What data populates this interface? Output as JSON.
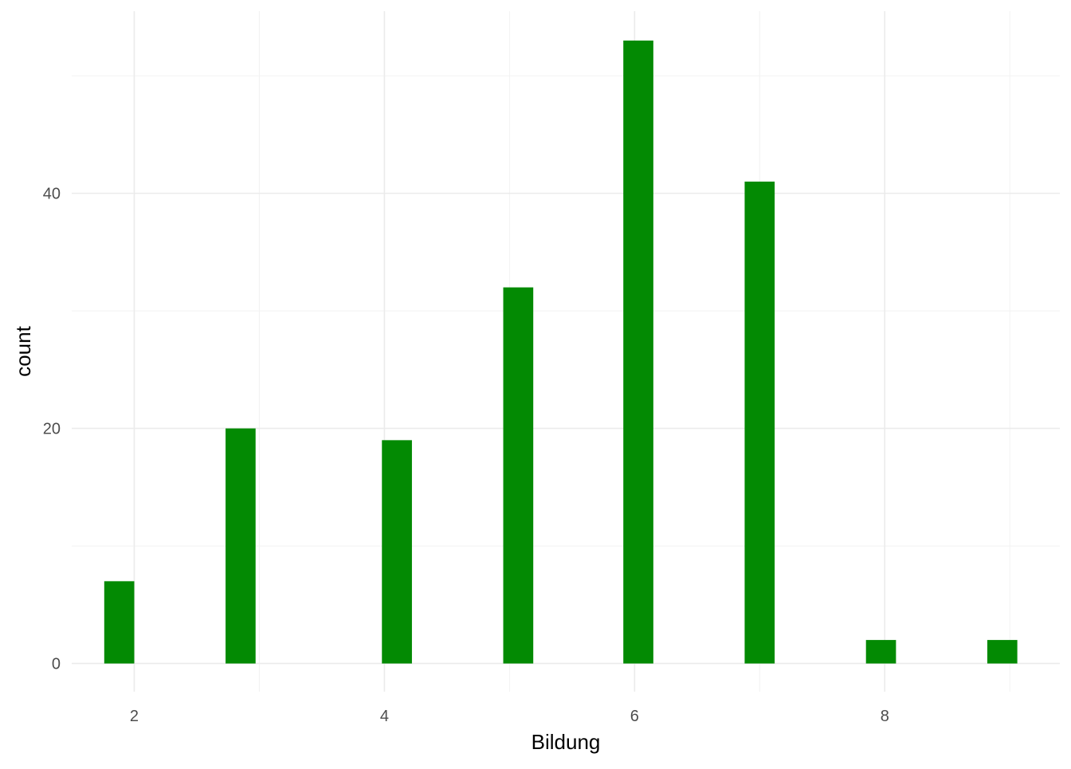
{
  "chart_data": {
    "type": "bar",
    "title": "",
    "xlabel": "Bildung",
    "ylabel": "count",
    "x": [
      1.88,
      2.85,
      4.1,
      5.07,
      6.03,
      7.0,
      7.97,
      8.94
    ],
    "values": [
      7,
      20,
      19,
      32,
      53,
      41,
      2,
      2
    ],
    "bar_width": 0.24,
    "xlim": [
      1.5,
      9.4
    ],
    "ylim": [
      -2.4,
      55.5
    ],
    "x_ticks": [
      2,
      4,
      6,
      8
    ],
    "x_tick_labels": [
      "2",
      "4",
      "6",
      "8"
    ],
    "x_minor_ticks": [
      3,
      5,
      7,
      9
    ],
    "y_ticks": [
      0,
      20,
      40
    ],
    "y_tick_labels": [
      "0",
      "20",
      "40"
    ],
    "y_minor_ticks": [
      10,
      30,
      50
    ],
    "grid": true,
    "legend": "none",
    "colors": {
      "bar": "#038a03",
      "grid_major": "#ebebeb",
      "grid_minor": "#f2f2f2",
      "tick_text": "#4d4d4d",
      "axis_title": "#000000"
    }
  }
}
